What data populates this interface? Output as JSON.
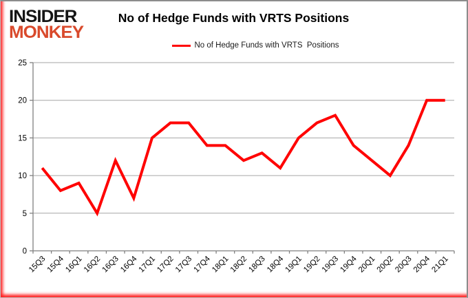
{
  "logo": {
    "line1": "INSIDER",
    "line2": "MONKEY"
  },
  "header": {
    "title": "No of Hedge Funds with VRTS Positions"
  },
  "legend": {
    "label": "No of Hedge Funds with VRTS  Positions",
    "swatch_color": "#ff0000"
  },
  "chart_data": {
    "type": "line",
    "title": "No of Hedge Funds with VRTS Positions",
    "categories": [
      "15Q3",
      "15Q4",
      "16Q1",
      "16Q2",
      "16Q3",
      "16Q4",
      "17Q1",
      "17Q2",
      "17Q3",
      "17Q4",
      "18Q1",
      "18Q2",
      "18Q3",
      "18Q4",
      "19Q1",
      "19Q2",
      "19Q3",
      "19Q4",
      "20Q1",
      "20Q2",
      "20Q3",
      "20Q4",
      "21Q1"
    ],
    "series": [
      {
        "name": "No of Hedge Funds with VRTS Positions",
        "values": [
          11,
          8,
          9,
          5,
          12,
          7,
          15,
          17,
          17,
          14,
          14,
          12,
          13,
          11,
          15,
          17,
          18,
          14,
          12,
          10,
          14,
          20,
          20
        ]
      }
    ],
    "xlabel": "",
    "ylabel": "",
    "ylim": [
      0,
      25
    ],
    "yticks": [
      0,
      5,
      10,
      15,
      20,
      25
    ],
    "grid": true,
    "legend_position": "top",
    "line_color": "#ff0000",
    "line_width": 4,
    "grid_color": "#a6a6a6",
    "axis_color": "#808080",
    "tick_label_color": "#000000",
    "tick_label_rotation_deg": -45
  }
}
